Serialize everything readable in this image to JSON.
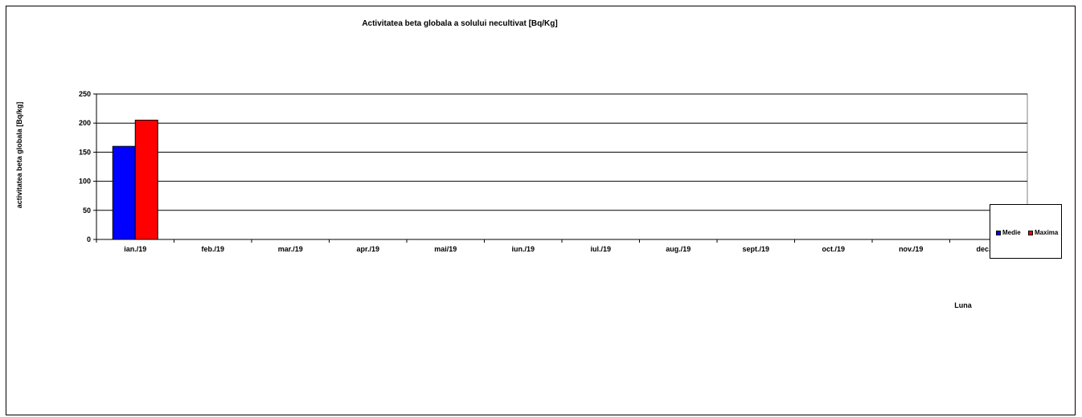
{
  "chart_data": {
    "type": "bar",
    "title": "Activitatea beta globala a solului necultivat [Bq/Kg]",
    "xlabel": "Luna",
    "ylabel": "activitatea beta globala [Bq/kg]",
    "ylim": [
      0,
      250
    ],
    "yticks": [
      0,
      50,
      100,
      150,
      200,
      250
    ],
    "categories": [
      "ian./19",
      "feb./19",
      "mar./19",
      "apr./19",
      "mai/19",
      "iun./19",
      "iul./19",
      "aug./19",
      "sept./19",
      "oct./19",
      "nov./19",
      "dec./19"
    ],
    "series": [
      {
        "name": "Medie",
        "color": "#0000ff",
        "values": [
          160,
          null,
          null,
          null,
          null,
          null,
          null,
          null,
          null,
          null,
          null,
          null
        ]
      },
      {
        "name": "Maxima",
        "color": "#ff0000",
        "values": [
          205,
          null,
          null,
          null,
          null,
          null,
          null,
          null,
          null,
          null,
          null,
          null
        ]
      }
    ],
    "grid": true,
    "legend_position": "right"
  }
}
